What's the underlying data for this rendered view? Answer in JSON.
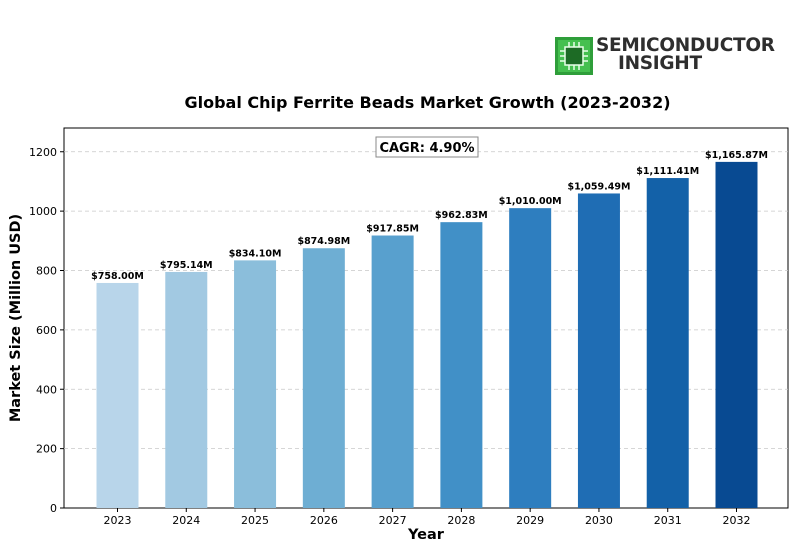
{
  "logo": {
    "line1": "SEMICONDUCTOR",
    "line2": "INSIGHT",
    "icon": "chip-icon"
  },
  "chart_data": {
    "type": "bar",
    "title": "Global Chip Ferrite Beads Market Growth (2023-2032)",
    "xlabel": "Year",
    "ylabel": "Market Size (Million USD)",
    "categories": [
      "2023",
      "2024",
      "2025",
      "2026",
      "2027",
      "2028",
      "2029",
      "2030",
      "2031",
      "2032"
    ],
    "values": [
      758.0,
      795.14,
      834.1,
      874.98,
      917.85,
      962.83,
      1010.0,
      1059.49,
      1111.41,
      1165.87
    ],
    "data_labels": [
      "$758.00M",
      "$795.14M",
      "$834.10M",
      "$874.98M",
      "$917.85M",
      "$962.83M",
      "$1,010.00M",
      "$1,059.49M",
      "$1,111.41M",
      "$1,165.87M"
    ],
    "ylim": [
      0,
      1280
    ],
    "yticks": [
      0,
      200,
      400,
      600,
      800,
      1000,
      1200
    ],
    "grid": "horizontal dashed",
    "annotation": "CAGR: 4.90%",
    "colors": [
      "#b8d5ea",
      "#a2c9e2",
      "#8bbedb",
      "#6eaed3",
      "#58a0ce",
      "#4190c7",
      "#2e7ebf",
      "#1f6db4",
      "#1361a8",
      "#084a92"
    ]
  }
}
